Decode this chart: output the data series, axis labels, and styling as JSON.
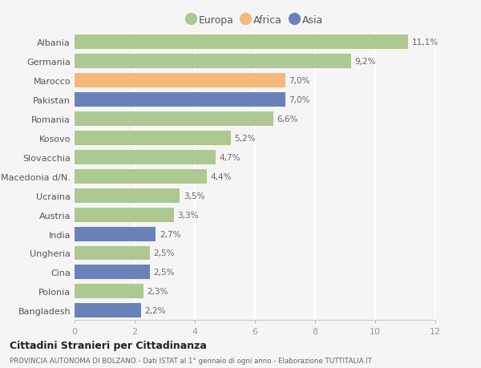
{
  "countries": [
    "Albania",
    "Germania",
    "Marocco",
    "Pakistan",
    "Romania",
    "Kosovo",
    "Slovacchia",
    "Macedonia d/N.",
    "Ucraina",
    "Austria",
    "India",
    "Ungheria",
    "Cina",
    "Polonia",
    "Bangladesh"
  ],
  "values": [
    11.1,
    9.2,
    7.0,
    7.0,
    6.6,
    5.2,
    4.7,
    4.4,
    3.5,
    3.3,
    2.7,
    2.5,
    2.5,
    2.3,
    2.2
  ],
  "labels": [
    "11,1%",
    "9,2%",
    "7,0%",
    "7,0%",
    "6,6%",
    "5,2%",
    "4,7%",
    "4,4%",
    "3,5%",
    "3,3%",
    "2,7%",
    "2,5%",
    "2,5%",
    "2,3%",
    "2,2%"
  ],
  "continents": [
    "Europa",
    "Europa",
    "Africa",
    "Asia",
    "Europa",
    "Europa",
    "Europa",
    "Europa",
    "Europa",
    "Europa",
    "Asia",
    "Europa",
    "Asia",
    "Europa",
    "Asia"
  ],
  "color_europa": "#adc890",
  "color_africa": "#f5b87a",
  "color_asia": "#6a82b8",
  "title": "Cittadini Stranieri per Cittadinanza",
  "subtitle": "PROVINCIA AUTONOMA DI BOLZANO - Dati ISTAT al 1° gennaio di ogni anno - Elaborazione TUTTITALIA.IT",
  "xlim": [
    0,
    12
  ],
  "xticks": [
    0,
    2,
    4,
    6,
    8,
    10,
    12
  ],
  "background_color": "#f5f5f5",
  "grid_color": "#ffffff",
  "bar_height": 0.75
}
